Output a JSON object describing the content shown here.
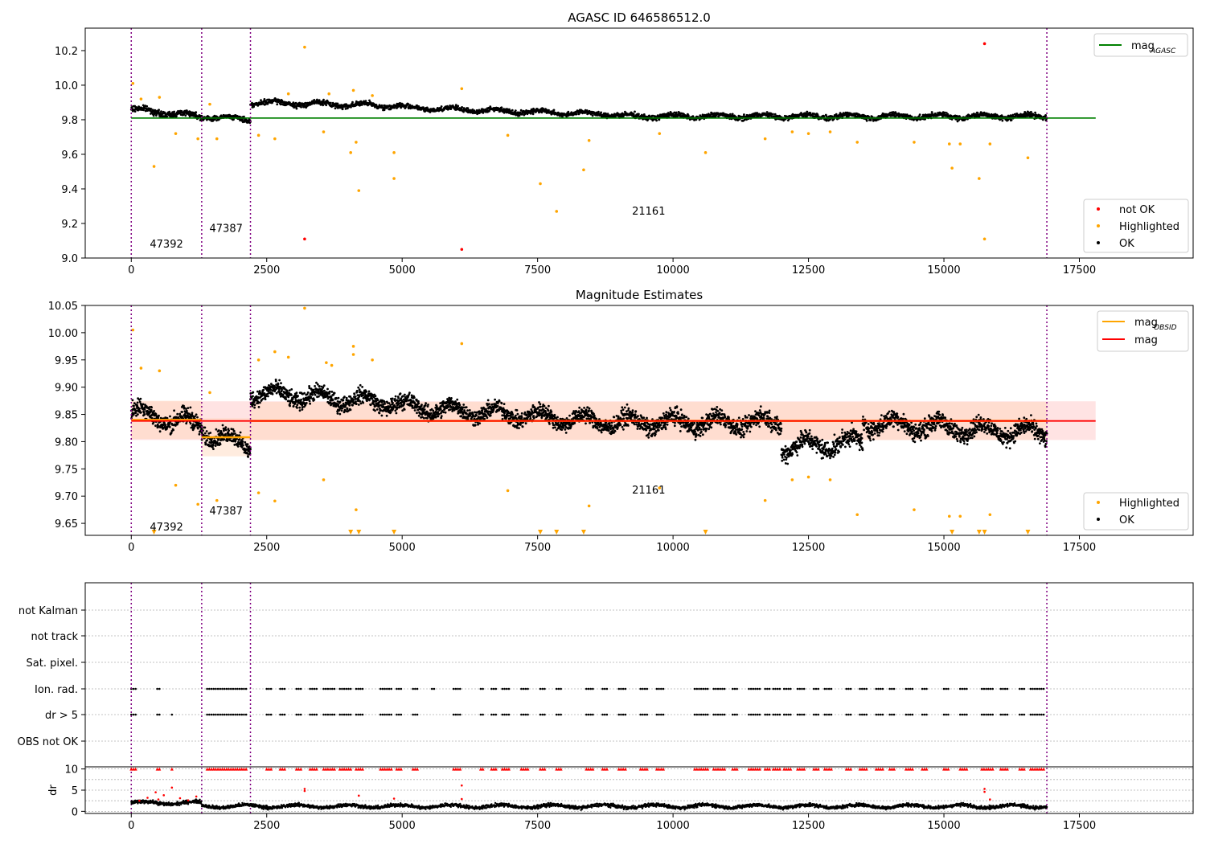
{
  "chart_data": [
    {
      "type": "scatter",
      "title": "AGASC ID 646586512.0",
      "xlim": [
        -850,
        19600
      ],
      "ylim": [
        9.0,
        10.33
      ],
      "xticks": [
        0,
        2500,
        5000,
        7500,
        10000,
        12500,
        15000,
        17500
      ],
      "yticks": [
        9.0,
        9.2,
        9.4,
        9.6,
        9.8,
        10.0,
        10.2
      ],
      "ytick_labels": [
        "9.0",
        "9.2",
        "9.4",
        "9.6",
        "9.8",
        "10.0",
        "10.2"
      ],
      "obsid_bounds": [
        0,
        1300,
        2200,
        16900
      ],
      "obsid_labels": [
        {
          "text": "47392",
          "x": 650,
          "y": 9.06
        },
        {
          "text": "47387",
          "x": 1750,
          "y": 9.15
        },
        {
          "text": "21161",
          "x": 9550,
          "y": 9.25
        }
      ],
      "hline": {
        "name": "mag_AGASC",
        "value": 9.81,
        "x_range": [
          0,
          17800
        ],
        "color": "#008000"
      },
      "ok_band": {
        "name": "OK",
        "color": "#000000",
        "segments": [
          {
            "x_start": 0,
            "x_end": 1300,
            "center": [
              9.86,
              9.82
            ],
            "spread": 0.025
          },
          {
            "x_start": 1300,
            "x_end": 2200,
            "center": [
              9.82,
              9.8
            ],
            "spread": 0.02
          },
          {
            "x_start": 2200,
            "x_end": 5000,
            "center": [
              9.9,
              9.88
            ],
            "spread": 0.022
          },
          {
            "x_start": 5000,
            "x_end": 9000,
            "center": [
              9.87,
              9.83
            ],
            "spread": 0.02
          },
          {
            "x_start": 9000,
            "x_end": 16900,
            "center": [
              9.82,
              9.82
            ],
            "spread": 0.022
          }
        ]
      },
      "highlighted": {
        "name": "Highlighted",
        "color": "#ffa500",
        "points": [
          [
            30,
            10.01
          ],
          [
            180,
            9.92
          ],
          [
            420,
            9.53
          ],
          [
            520,
            9.93
          ],
          [
            820,
            9.72
          ],
          [
            1230,
            9.69
          ],
          [
            1450,
            9.89
          ],
          [
            1580,
            9.69
          ],
          [
            2350,
            9.71
          ],
          [
            2650,
            9.69
          ],
          [
            2900,
            9.95
          ],
          [
            3200,
            10.22
          ],
          [
            3550,
            9.73
          ],
          [
            3650,
            9.95
          ],
          [
            4050,
            9.61
          ],
          [
            4100,
            9.97
          ],
          [
            4150,
            9.67
          ],
          [
            4200,
            9.39
          ],
          [
            4450,
            9.94
          ],
          [
            4850,
            9.61
          ],
          [
            4850,
            9.46
          ],
          [
            6100,
            9.98
          ],
          [
            6950,
            9.71
          ],
          [
            7550,
            9.43
          ],
          [
            7850,
            9.27
          ],
          [
            8350,
            9.51
          ],
          [
            8450,
            9.68
          ],
          [
            9750,
            9.72
          ],
          [
            10600,
            9.61
          ],
          [
            11700,
            9.69
          ],
          [
            12200,
            9.73
          ],
          [
            12500,
            9.72
          ],
          [
            12900,
            9.73
          ],
          [
            13400,
            9.67
          ],
          [
            14450,
            9.67
          ],
          [
            15100,
            9.66
          ],
          [
            15150,
            9.52
          ],
          [
            15300,
            9.66
          ],
          [
            15650,
            9.46
          ],
          [
            15750,
            9.11
          ],
          [
            15850,
            9.66
          ],
          [
            16550,
            9.58
          ]
        ]
      },
      "not_ok": {
        "name": "not OK",
        "color": "#ff0000",
        "points": [
          [
            3200,
            9.11
          ],
          [
            6100,
            9.05
          ],
          [
            15750,
            10.24
          ]
        ]
      },
      "legend_main": [
        {
          "name": "mag",
          "sub": "AGASC",
          "color": "#008000"
        }
      ],
      "legend_points": [
        {
          "name": "not OK",
          "color": "#ff0000"
        },
        {
          "name": "Highlighted",
          "color": "#ffa500"
        },
        {
          "name": "OK",
          "color": "#000000"
        }
      ]
    },
    {
      "type": "scatter",
      "title": "Magnitude Estimates",
      "xlim": [
        -850,
        19600
      ],
      "ylim": [
        9.628,
        10.05
      ],
      "xticks": [
        0,
        2500,
        5000,
        7500,
        10000,
        12500,
        15000,
        17500
      ],
      "yticks": [
        9.65,
        9.7,
        9.75,
        9.8,
        9.85,
        9.9,
        9.95,
        10.0,
        10.05
      ],
      "ytick_labels": [
        "9.65",
        "9.70",
        "9.75",
        "9.80",
        "9.85",
        "9.90",
        "9.95",
        "10.00",
        "10.05"
      ],
      "obsid_bounds": [
        0,
        1300,
        2200,
        16900
      ],
      "obsid_labels": [
        {
          "text": "47392",
          "x": 650,
          "y": 9.637
        },
        {
          "text": "47387",
          "x": 1750,
          "y": 9.666
        },
        {
          "text": "21161",
          "x": 9550,
          "y": 9.705
        }
      ],
      "mag_line": {
        "name": "mag",
        "value": 9.838,
        "band": [
          9.803,
          9.874
        ],
        "x_range": [
          0,
          17800
        ],
        "color": "#ff0000",
        "band_color": "#ffcccc"
      },
      "obsid_mag": {
        "name": "mag_OBSID",
        "color": "#ffa500",
        "segments": [
          {
            "x_start": 0,
            "x_end": 1300,
            "value": 9.84
          },
          {
            "x_start": 1300,
            "x_end": 2200,
            "value": 9.808
          },
          {
            "x_start": 2200,
            "x_end": 16900,
            "value": 9.838
          }
        ],
        "band_color": "#ffd5b8"
      },
      "ok_band": {
        "name": "OK",
        "color": "#000000",
        "segments": [
          {
            "x_start": 0,
            "x_end": 1300,
            "center": [
              9.855,
              9.83
            ],
            "spread": 0.025
          },
          {
            "x_start": 1300,
            "x_end": 2200,
            "center": [
              9.82,
              9.79
            ],
            "spread": 0.022
          },
          {
            "x_start": 2200,
            "x_end": 5000,
            "center": [
              9.89,
              9.87
            ],
            "spread": 0.022
          },
          {
            "x_start": 5000,
            "x_end": 9000,
            "center": [
              9.865,
              9.835
            ],
            "spread": 0.022
          },
          {
            "x_start": 9000,
            "x_end": 12000,
            "center": [
              9.835,
              9.835
            ],
            "spread": 0.024
          },
          {
            "x_start": 12000,
            "x_end": 13500,
            "center": [
              9.79,
              9.8
            ],
            "spread": 0.025
          },
          {
            "x_start": 13500,
            "x_end": 16900,
            "center": [
              9.835,
              9.815
            ],
            "spread": 0.024
          }
        ]
      },
      "highlighted": {
        "name": "Highlighted",
        "color": "#ffa500",
        "points": [
          [
            30,
            10.005
          ],
          [
            180,
            9.935
          ],
          [
            520,
            9.93
          ],
          [
            820,
            9.72
          ],
          [
            1230,
            9.685
          ],
          [
            1450,
            9.89
          ],
          [
            1580,
            9.692
          ],
          [
            2350,
            9.706
          ],
          [
            2650,
            9.691
          ],
          [
            2350,
            9.95
          ],
          [
            2650,
            9.965
          ],
          [
            2900,
            9.955
          ],
          [
            3200,
            10.045
          ],
          [
            3550,
            9.73
          ],
          [
            3600,
            9.945
          ],
          [
            3700,
            9.94
          ],
          [
            4100,
            9.975
          ],
          [
            4100,
            9.96
          ],
          [
            4150,
            9.675
          ],
          [
            4450,
            9.95
          ],
          [
            6100,
            9.98
          ],
          [
            6950,
            9.71
          ],
          [
            8450,
            9.682
          ],
          [
            9750,
            9.715
          ],
          [
            11700,
            9.692
          ],
          [
            12200,
            9.73
          ],
          [
            12500,
            9.735
          ],
          [
            12900,
            9.73
          ],
          [
            13400,
            9.666
          ],
          [
            14450,
            9.675
          ],
          [
            15100,
            9.663
          ],
          [
            15300,
            9.663
          ],
          [
            15850,
            9.666
          ]
        ],
        "off_scale_x": [
          420,
          4050,
          4200,
          4850,
          7550,
          7850,
          8350,
          10600,
          15150,
          15650,
          15750,
          16550
        ]
      },
      "legend_main": [
        {
          "name": "mag",
          "sub": "OBSID",
          "color": "#ffa500"
        },
        {
          "name": "mag",
          "sub": "",
          "color": "#ff0000"
        }
      ],
      "legend_points": [
        {
          "name": "Highlighted",
          "color": "#ffa500"
        },
        {
          "name": "OK",
          "color": "#000000"
        }
      ]
    },
    {
      "type": "scatter",
      "xlim": [
        -850,
        19600
      ],
      "obsid_bounds": [
        0,
        1300,
        2200,
        16900
      ],
      "flag_rows": [
        "not Kalman",
        "not track",
        "Sat. pixel.",
        "Ion. rad.",
        "dr > 5",
        "OBS not OK"
      ],
      "flag_events": {
        "Ion. rad.": [
          [
            0,
            100
          ],
          [
            480,
            520
          ],
          [
            1400,
            2150
          ],
          [
            2500,
            2600
          ],
          [
            2750,
            2850
          ],
          [
            3050,
            3150
          ],
          [
            3300,
            3450
          ],
          [
            3550,
            3750
          ],
          [
            3850,
            4050
          ],
          [
            4150,
            4300
          ],
          [
            4600,
            4800
          ],
          [
            4900,
            5000
          ],
          [
            5200,
            5300
          ],
          [
            5550,
            5600
          ],
          [
            5950,
            6100
          ],
          [
            6450,
            6500
          ],
          [
            6650,
            6750
          ],
          [
            6850,
            7000
          ],
          [
            7200,
            7350
          ],
          [
            7550,
            7650
          ],
          [
            7850,
            7950
          ],
          [
            8400,
            8550
          ],
          [
            8700,
            8800
          ],
          [
            9000,
            9150
          ],
          [
            9400,
            9550
          ],
          [
            9700,
            9850
          ],
          [
            10400,
            10650
          ],
          [
            10750,
            10950
          ],
          [
            11100,
            11200
          ],
          [
            11400,
            11600
          ],
          [
            11700,
            11800
          ],
          [
            11850,
            12000
          ],
          [
            12050,
            12200
          ],
          [
            12300,
            12450
          ],
          [
            12600,
            12700
          ],
          [
            12800,
            12950
          ],
          [
            13200,
            13300
          ],
          [
            13450,
            13600
          ],
          [
            13750,
            13900
          ],
          [
            14000,
            14100
          ],
          [
            14300,
            14450
          ],
          [
            14600,
            14700
          ],
          [
            15000,
            15100
          ],
          [
            15300,
            15450
          ],
          [
            15700,
            15900
          ],
          [
            16050,
            16200
          ],
          [
            16400,
            16500
          ],
          [
            16600,
            16850
          ]
        ],
        "dr > 5": [
          [
            0,
            100
          ],
          [
            480,
            520
          ],
          [
            750,
            780
          ],
          [
            1400,
            2150
          ],
          [
            2500,
            2600
          ],
          [
            2750,
            2850
          ],
          [
            3050,
            3150
          ],
          [
            3300,
            3450
          ],
          [
            3550,
            3750
          ],
          [
            3850,
            4050
          ],
          [
            4150,
            4300
          ],
          [
            4600,
            4800
          ],
          [
            4900,
            5000
          ],
          [
            5200,
            5300
          ],
          [
            5950,
            6100
          ],
          [
            6450,
            6500
          ],
          [
            6650,
            6750
          ],
          [
            6850,
            7000
          ],
          [
            7200,
            7350
          ],
          [
            7550,
            7650
          ],
          [
            7850,
            7950
          ],
          [
            8400,
            8550
          ],
          [
            8700,
            8800
          ],
          [
            9000,
            9150
          ],
          [
            9400,
            9550
          ],
          [
            9700,
            9850
          ],
          [
            10400,
            10650
          ],
          [
            10750,
            10950
          ],
          [
            11100,
            11200
          ],
          [
            11400,
            11600
          ],
          [
            11700,
            11800
          ],
          [
            11850,
            12000
          ],
          [
            12050,
            12200
          ],
          [
            12300,
            12450
          ],
          [
            12600,
            12700
          ],
          [
            12800,
            12950
          ],
          [
            13200,
            13300
          ],
          [
            13450,
            13600
          ],
          [
            13750,
            13900
          ],
          [
            14000,
            14100
          ],
          [
            14300,
            14450
          ],
          [
            14600,
            14700
          ],
          [
            15000,
            15100
          ],
          [
            15300,
            15450
          ],
          [
            15700,
            15900
          ],
          [
            16050,
            16200
          ],
          [
            16400,
            16500
          ],
          [
            16600,
            16850
          ]
        ]
      }
    },
    {
      "type": "scatter",
      "ylabel": "dr",
      "xlim": [
        -850,
        19600
      ],
      "ylim": [
        -0.5,
        10.5
      ],
      "xticks": [
        0,
        2500,
        5000,
        7500,
        10000,
        12500,
        15000,
        17500
      ],
      "yticks": [
        0,
        5,
        10
      ],
      "ytick_labels": [
        "0",
        "5",
        "10"
      ],
      "obsid_bounds": [
        0,
        1300,
        2200,
        16900
      ],
      "ok_band": {
        "name": "OK",
        "color": "#000000",
        "center": 1.2,
        "spread": 0.6,
        "x_range": [
          0,
          16900
        ]
      },
      "capped_value": 10,
      "outliers": [
        [
          150,
          2.5
        ],
        [
          300,
          3.2
        ],
        [
          450,
          4.5
        ],
        [
          500,
          2.8
        ],
        [
          600,
          3.8
        ],
        [
          750,
          5.6
        ],
        [
          900,
          3.1
        ],
        [
          1050,
          2.6
        ],
        [
          1200,
          3.5
        ],
        [
          3200,
          4.8
        ],
        [
          3200,
          5.3
        ],
        [
          4200,
          3.7
        ],
        [
          4850,
          3.0
        ],
        [
          6100,
          6.1
        ],
        [
          6100,
          2.9
        ],
        [
          15750,
          4.6
        ],
        [
          15750,
          5.3
        ],
        [
          15850,
          2.8
        ]
      ]
    }
  ]
}
